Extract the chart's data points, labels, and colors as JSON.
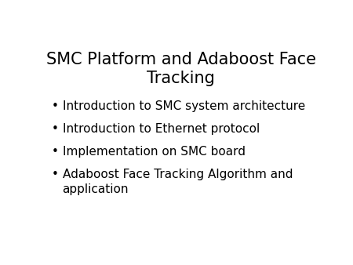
{
  "title": "SMC Platform and Adaboost Face\nTracking",
  "bullet_points": [
    "Introduction to SMC system architecture",
    "Introduction to Ethernet protocol",
    "Implementation on SMC board",
    "Adaboost Face Tracking Algorithm and\napplication"
  ],
  "background_color": "#ffffff",
  "text_color": "#000000",
  "title_fontsize": 15,
  "bullet_fontsize": 11,
  "bullet_symbol": "•"
}
